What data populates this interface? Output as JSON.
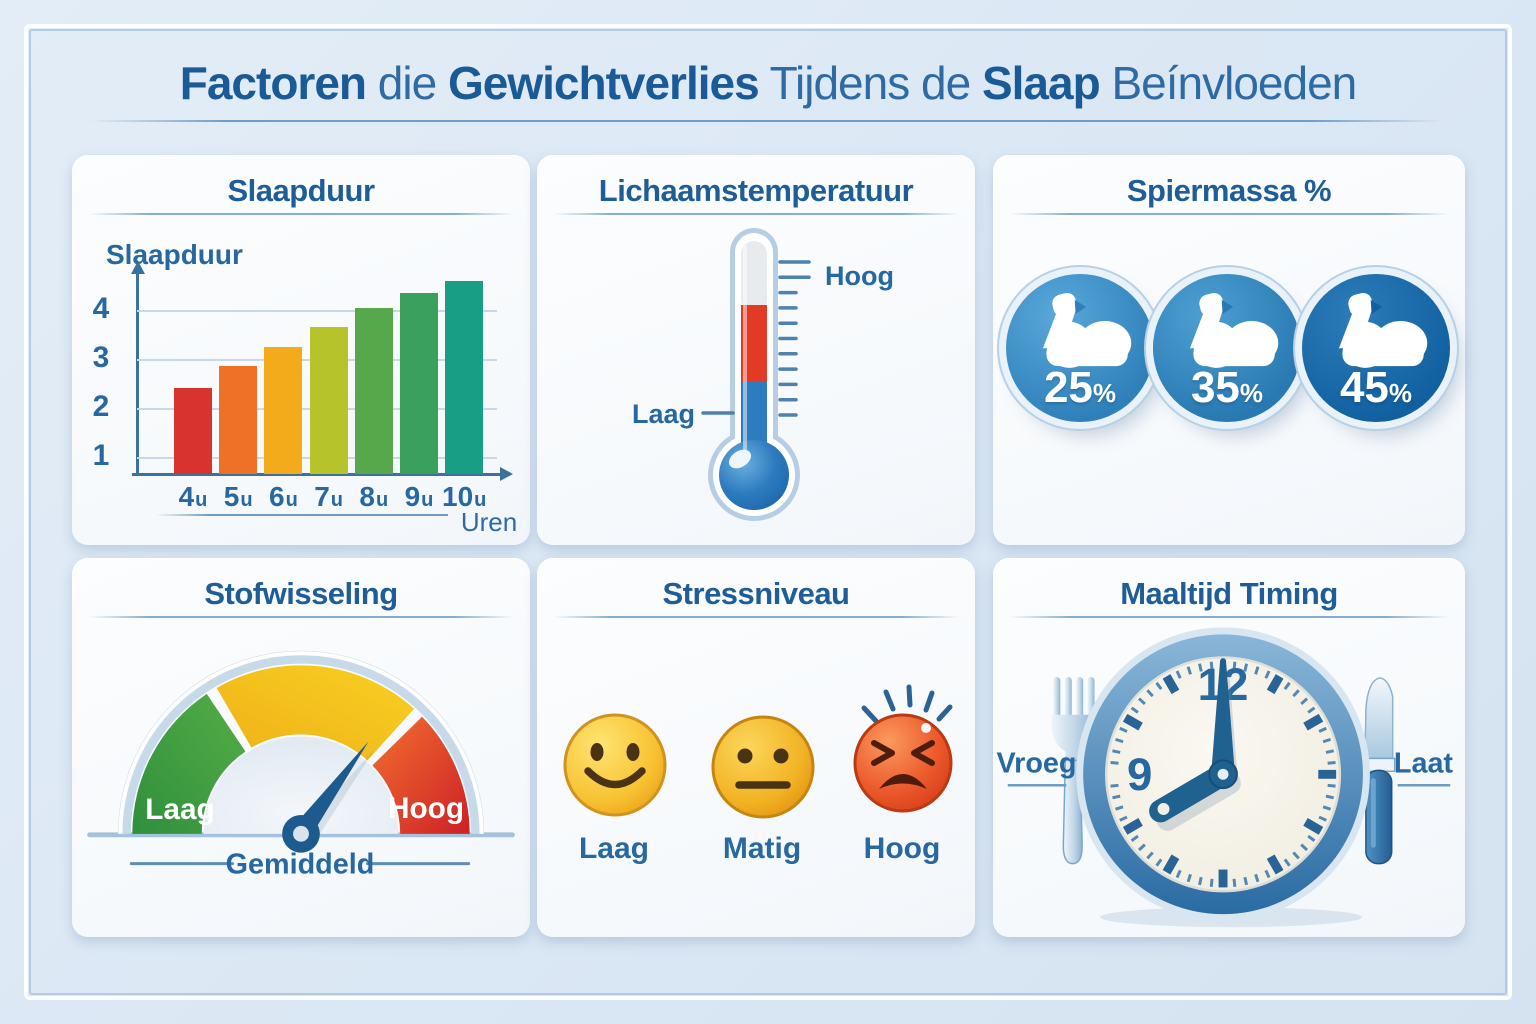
{
  "title": {
    "parts": [
      {
        "text": "Factoren",
        "bold": true
      },
      {
        "text": "die",
        "bold": false
      },
      {
        "text": "Gewichtverlies",
        "bold": true
      },
      {
        "text": "Tijdens",
        "bold": false
      },
      {
        "text": "de",
        "bold": false
      },
      {
        "text": "Slaap",
        "bold": true
      },
      {
        "text": "Beínvloeden",
        "bold": false
      }
    ]
  },
  "panels": {
    "slaapduur": {
      "title": "Slaapduur",
      "y_axis_label": "Slaapduur",
      "x_axis_label": "Uren",
      "y_ticks": [
        4,
        3,
        2,
        1
      ],
      "bars": [
        {
          "label": "4",
          "suffix": "u",
          "value": 2.4,
          "color": "#d8332e"
        },
        {
          "label": "5",
          "suffix": "u",
          "value": 2.85,
          "color": "#ef7125"
        },
        {
          "label": "6",
          "suffix": "u",
          "value": 3.25,
          "color": "#f4ab1b"
        },
        {
          "label": "7",
          "suffix": "u",
          "value": 3.65,
          "color": "#b7c32b"
        },
        {
          "label": "8",
          "suffix": "u",
          "value": 4.05,
          "color": "#57a74d"
        },
        {
          "label": "9",
          "suffix": "u",
          "value": 4.35,
          "color": "#3aa05d"
        },
        {
          "label": "10",
          "suffix": "u",
          "value": 4.6,
          "color": "#179e85"
        }
      ]
    },
    "lichaamstemperatuur": {
      "title": "Lichaamstemperatuur",
      "high_label": "Hoog",
      "low_label": "Laag"
    },
    "spiermassa": {
      "title": "Spiermassa %",
      "items": [
        {
          "value": "25",
          "suffix": "%",
          "color_light": "#58a8da",
          "color_dark": "#2f80ba"
        },
        {
          "value": "35",
          "suffix": "%",
          "color_light": "#4d9fd3",
          "color_dark": "#2879b1"
        },
        {
          "value": "45",
          "suffix": "%",
          "color_light": "#2d7cba",
          "color_dark": "#11609f"
        }
      ]
    },
    "stofwisseling": {
      "title": "Stofwisseling",
      "low_label": "Laag",
      "mid_label": "Gemiddeld",
      "high_label": "Hoog"
    },
    "stressniveau": {
      "title": "Stressniveau",
      "levels": [
        {
          "label": "Laag"
        },
        {
          "label": "Matig"
        },
        {
          "label": "Hoog"
        }
      ]
    },
    "maaltijd": {
      "title": "Maaltijd Timing",
      "early_label": "Vroeg",
      "late_label": "Laat",
      "clock_numerals": [
        "12",
        "9"
      ]
    }
  },
  "colors": {
    "accent_blue": "#26689f",
    "title_blue_bold": "#1a5a96",
    "title_blue_regular": "#2e6ba4",
    "page_background": "#dae7f4",
    "panel_background": "#f8fafd",
    "gauge_green": "#3f9c42",
    "gauge_yellow": "#f6c51d",
    "gauge_red": "#e03527",
    "thermometer_red": "#e23b25",
    "thermometer_blue": "#2e7cc0"
  },
  "chart_data": [
    {
      "type": "bar",
      "title": "Slaapduur",
      "categories": [
        "4u",
        "5u",
        "6u",
        "7u",
        "8u",
        "9u",
        "10u"
      ],
      "values": [
        2.4,
        2.85,
        3.25,
        3.65,
        4.05,
        4.35,
        4.6
      ],
      "xlabel": "Uren",
      "ylabel": "Slaapduur",
      "ylim": [
        0,
        5
      ],
      "yticks": [
        1,
        2,
        3,
        4
      ],
      "grid": true,
      "bar_colors": [
        "#d8332e",
        "#ef7125",
        "#f4ab1b",
        "#b7c32b",
        "#57a74d",
        "#3aa05d",
        "#179e85"
      ]
    },
    {
      "type": "pictorial",
      "title": "Lichaamstemperatuur",
      "kind": "thermometer",
      "labels": [
        "Laag",
        "Hoog"
      ],
      "note": "kwik gevuld tot tussen Laag en Hoog (rood boven blauw)"
    },
    {
      "type": "pictorial",
      "title": "Spiermassa %",
      "kind": "muscle-badges",
      "categories": [
        "25%",
        "35%",
        "45%"
      ],
      "values": [
        25,
        35,
        45
      ]
    },
    {
      "type": "gauge",
      "title": "Stofwisseling",
      "segments": [
        "Laag",
        "Gemiddeld",
        "Hoog"
      ],
      "segment_colors": [
        "#3f9c42",
        "#f6c51d",
        "#e03527"
      ],
      "needle_position": "tussen Gemiddeld en Hoog"
    },
    {
      "type": "pictorial",
      "title": "Stressniveau",
      "kind": "emoji-scale",
      "categories": [
        "Laag",
        "Matig",
        "Hoog"
      ],
      "icons": [
        "smiling-face",
        "neutral-face",
        "stressed-face"
      ]
    },
    {
      "type": "pictorial",
      "title": "Maaltijd Timing",
      "kind": "clock-with-cutlery",
      "labels": [
        "Vroeg",
        "Laat"
      ],
      "clock_numerals": [
        "12",
        "9"
      ]
    }
  ]
}
